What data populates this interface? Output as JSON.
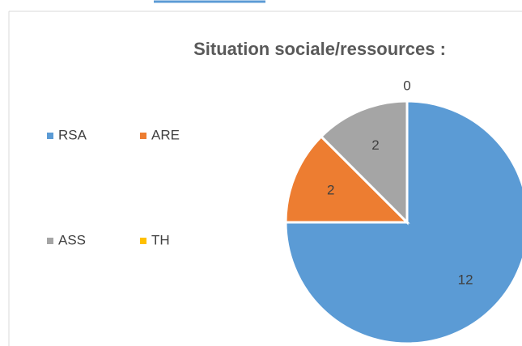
{
  "chart_data": {
    "type": "pie",
    "title": "Situation sociale/ressources :",
    "categories": [
      "RSA",
      "ARE",
      "ASS",
      "TH"
    ],
    "values": [
      12,
      2,
      2,
      0
    ],
    "colors": [
      "#5b9bd5",
      "#ed7d31",
      "#a5a5a5",
      "#ffc000"
    ],
    "legend": "left"
  }
}
